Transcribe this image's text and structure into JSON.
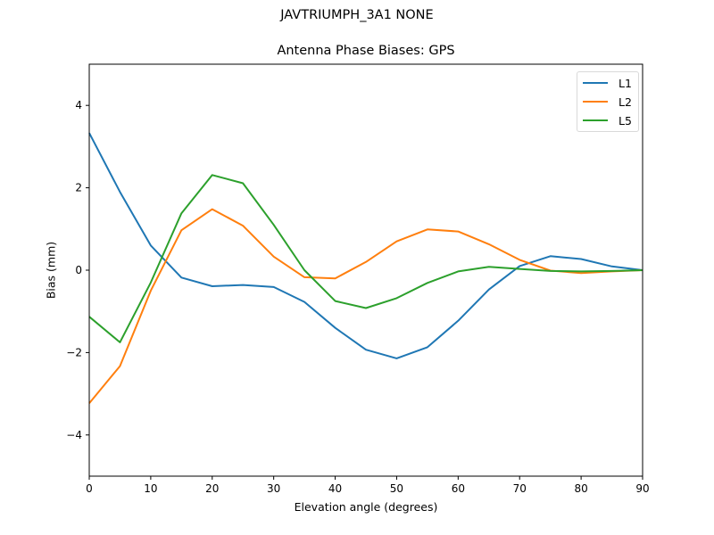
{
  "figure": {
    "suptitle": "JAVTRIUMPH_3A1  NONE",
    "title": "Antenna Phase Biases: GPS",
    "xlabel": "Elevation angle (degrees)",
    "ylabel": "Bias (mm)"
  },
  "legend": [
    {
      "label": "L1",
      "color": "#1f77b4"
    },
    {
      "label": "L2",
      "color": "#ff7f0e"
    },
    {
      "label": "L5",
      "color": "#2ca02c"
    }
  ],
  "chart_data": {
    "type": "line",
    "title": "Antenna Phase Biases: GPS",
    "suptitle": "JAVTRIUMPH_3A1  NONE",
    "xlabel": "Elevation angle (degrees)",
    "ylabel": "Bias (mm)",
    "xlim": [
      0,
      90
    ],
    "ylim": [
      -5,
      5
    ],
    "xticks": [
      0,
      10,
      20,
      30,
      40,
      50,
      60,
      70,
      80,
      90
    ],
    "yticks": [
      -4,
      -2,
      0,
      2,
      4
    ],
    "ytick_labels": [
      "−4",
      "−2",
      "0",
      "2",
      "4"
    ],
    "grid": false,
    "legend_position": "upper right",
    "x": [
      0,
      5,
      10,
      15,
      20,
      25,
      30,
      35,
      40,
      45,
      50,
      55,
      60,
      65,
      70,
      75,
      80,
      85,
      90
    ],
    "series": [
      {
        "name": "L1",
        "color": "#1f77b4",
        "values": [
          3.33,
          1.9,
          0.6,
          -0.18,
          -0.39,
          -0.36,
          -0.41,
          -0.77,
          -1.4,
          -1.93,
          -2.14,
          -1.87,
          -1.23,
          -0.47,
          0.1,
          0.34,
          0.27,
          0.09,
          0.0
        ]
      },
      {
        "name": "L2",
        "color": "#ff7f0e",
        "values": [
          -3.23,
          -2.33,
          -0.5,
          0.97,
          1.48,
          1.08,
          0.33,
          -0.17,
          -0.2,
          0.2,
          0.7,
          0.99,
          0.94,
          0.63,
          0.25,
          -0.01,
          -0.07,
          -0.03,
          0.0
        ]
      },
      {
        "name": "L5",
        "color": "#2ca02c",
        "values": [
          -1.13,
          -1.75,
          -0.3,
          1.38,
          2.31,
          2.11,
          1.1,
          0.0,
          -0.75,
          -0.92,
          -0.68,
          -0.31,
          -0.03,
          0.08,
          0.03,
          -0.02,
          -0.03,
          -0.02,
          0.0
        ]
      }
    ]
  }
}
